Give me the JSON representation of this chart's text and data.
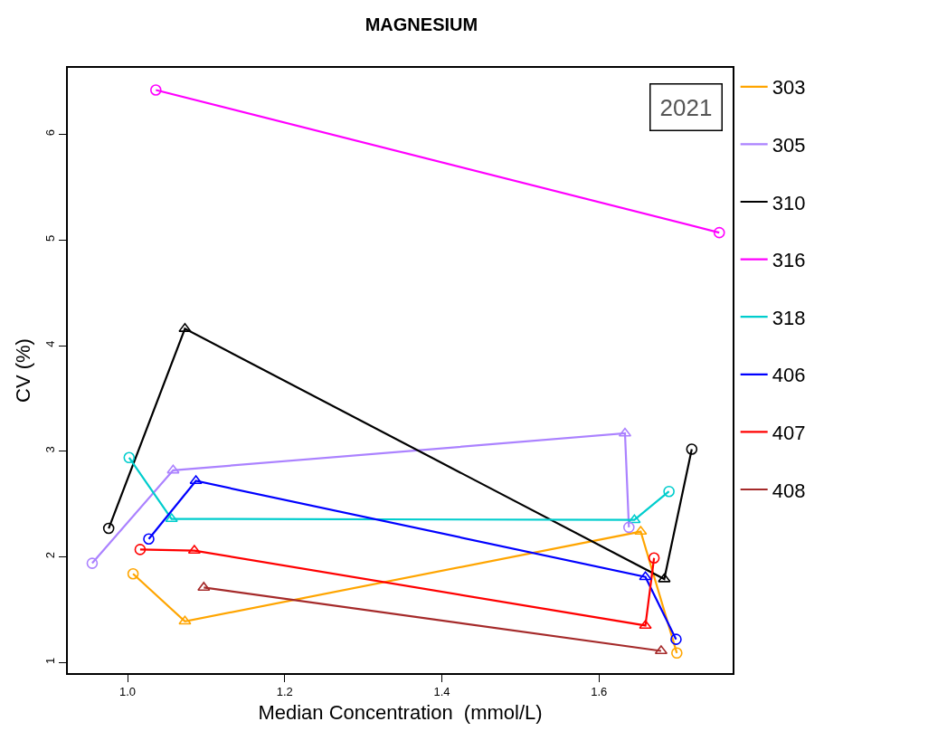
{
  "chart_data": {
    "type": "line",
    "title": "MAGNESIUM",
    "xlabel": "Median Concentration  (mmol/L)",
    "ylabel": "CV (%)",
    "annotations": [
      "2021"
    ],
    "xlim": [
      0.924,
      1.77
    ],
    "xticks": [
      {
        "value": 1.0,
        "label": "1.0"
      },
      {
        "value": 1.2,
        "label": "1.2"
      },
      {
        "value": 1.4,
        "label": "1.4"
      },
      {
        "value": 1.6,
        "label": "1.6"
      }
    ],
    "ylim": [
      0.9,
      6.63
    ],
    "yticks": [
      1,
      2,
      3,
      4,
      5,
      6
    ],
    "legend": "right",
    "line_style": "solid",
    "series": [
      {
        "name": "303",
        "color": "#ffa500",
        "marker": "none",
        "x": [
          1.007,
          1.073,
          1.653,
          1.699
        ],
        "values": [
          1.84,
          1.39,
          2.24,
          1.09
        ]
      },
      {
        "name": "305",
        "color": "#ab82ff",
        "marker": "none",
        "x": [
          0.955,
          1.058,
          1.633,
          1.638
        ],
        "values": [
          1.94,
          2.82,
          3.17,
          2.28
        ]
      },
      {
        "name": "310",
        "color": "#000000",
        "marker": "none",
        "x": [
          0.976,
          1.073,
          1.683,
          1.718
        ],
        "values": [
          2.27,
          4.16,
          1.79,
          3.02
        ]
      },
      {
        "name": "316",
        "color": "#ff00ff",
        "marker": "none",
        "x": [
          1.036,
          1.753
        ],
        "values": [
          6.42,
          5.07
        ]
      },
      {
        "name": "318",
        "color": "#00cdcd",
        "marker": "none",
        "x": [
          1.002,
          1.056,
          1.645,
          1.689
        ],
        "values": [
          2.94,
          2.36,
          2.35,
          2.62
        ]
      },
      {
        "name": "406",
        "color": "#0000ff",
        "marker": "none",
        "x": [
          1.027,
          1.087,
          1.659,
          1.698
        ],
        "values": [
          2.17,
          2.72,
          1.81,
          1.22
        ]
      },
      {
        "name": "407",
        "color": "#ff0000",
        "marker": "none",
        "x": [
          1.016,
          1.085,
          1.659,
          1.67
        ],
        "values": [
          2.07,
          2.06,
          1.35,
          1.99
        ]
      },
      {
        "name": "408",
        "color": "#a52a2a",
        "marker": "none",
        "x": [
          1.097,
          1.679
        ],
        "values": [
          1.71,
          1.11
        ]
      },
      {
        "type": "scatter",
        "marker": "triangle",
        "x": [
          1.073,
          1.653,
          1.058,
          1.633,
          1.073,
          1.683,
          1.056,
          1.645,
          1.087,
          1.659,
          1.085,
          1.659,
          1.097,
          1.679
        ],
        "values": [
          1.39,
          2.24,
          2.82,
          3.17,
          4.16,
          1.79,
          2.36,
          2.35,
          2.72,
          1.81,
          2.06,
          1.35,
          1.71,
          1.11
        ],
        "colors": [
          "#ffa500",
          "#ffa500",
          "#ab82ff",
          "#ab82ff",
          "#000000",
          "#000000",
          "#00cdcd",
          "#00cdcd",
          "#0000ff",
          "#0000ff",
          "#ff0000",
          "#ff0000",
          "#a52a2a",
          "#a52a2a"
        ]
      },
      {
        "type": "scatter",
        "marker": "circle",
        "x": [
          1.007,
          1.699,
          0.955,
          1.638,
          0.976,
          1.718,
          1.036,
          1.753,
          1.002,
          1.689,
          1.027,
          1.698,
          1.016,
          1.67
        ],
        "values": [
          1.84,
          1.09,
          1.94,
          2.28,
          2.27,
          3.02,
          6.42,
          5.07,
          2.94,
          2.62,
          2.17,
          1.22,
          2.07,
          1.99
        ],
        "colors": [
          "#ffa500",
          "#ffa500",
          "#ab82ff",
          "#ab82ff",
          "#000000",
          "#000000",
          "#ff00ff",
          "#ff00ff",
          "#00cdcd",
          "#00cdcd",
          "#0000ff",
          "#0000ff",
          "#ff0000",
          "#ff0000"
        ]
      }
    ]
  }
}
